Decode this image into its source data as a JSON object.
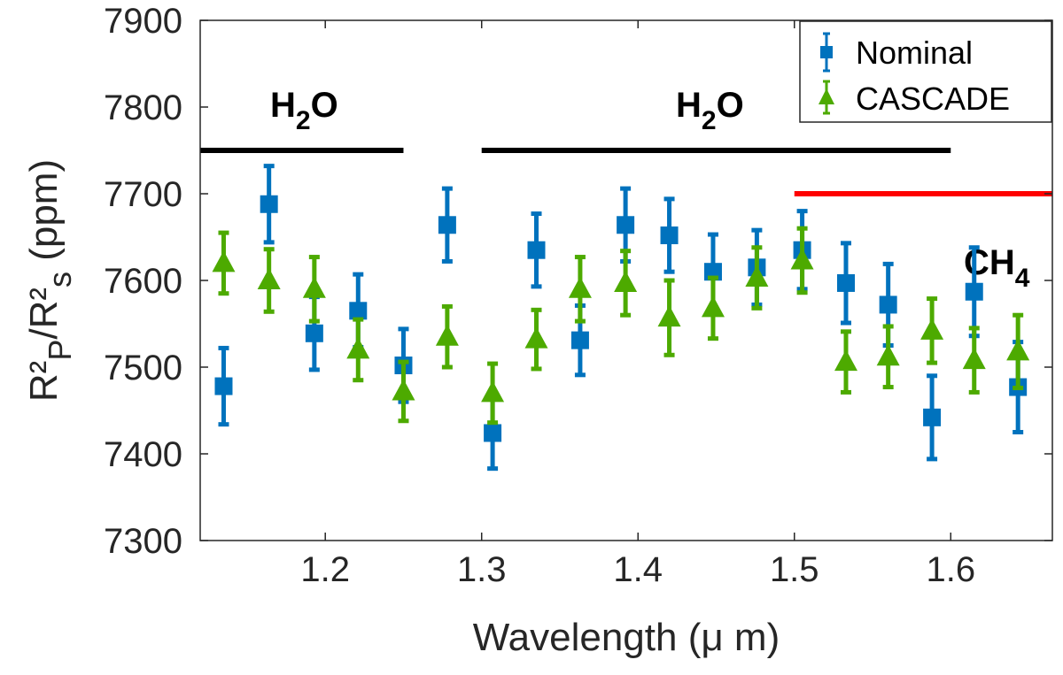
{
  "chart_data": {
    "type": "scatter",
    "title": "",
    "xlabel": "Wavelength (μ m)",
    "ylabel": "R²P/R²s (ppm)",
    "ylabel_parts": {
      "r1": "R²",
      "sub1": "P",
      "sep": "/R²",
      "sub2": "s",
      "unit": " (ppm)"
    },
    "xlim": [
      1.12,
      1.665
    ],
    "ylim": [
      7300,
      7900
    ],
    "xticks": [
      {
        "value": 1.2,
        "label": "1.2"
      },
      {
        "value": 1.3,
        "label": "1.3"
      },
      {
        "value": 1.4,
        "label": "1.4"
      },
      {
        "value": 1.5,
        "label": "1.5"
      },
      {
        "value": 1.6,
        "label": "1.6"
      }
    ],
    "yticks": [
      {
        "value": 7300,
        "label": "7300"
      },
      {
        "value": 7400,
        "label": "7400"
      },
      {
        "value": 7500,
        "label": "7500"
      },
      {
        "value": 7600,
        "label": "7600"
      },
      {
        "value": 7700,
        "label": "7700"
      },
      {
        "value": 7800,
        "label": "7800"
      },
      {
        "value": 7900,
        "label": "7900"
      }
    ],
    "grid": false,
    "legend_position": "top-right",
    "series": [
      {
        "name": "Nominal",
        "marker": "square",
        "color": "#0072BD",
        "x": [
          1.135,
          1.164,
          1.193,
          1.221,
          1.25,
          1.278,
          1.307,
          1.335,
          1.363,
          1.392,
          1.42,
          1.448,
          1.476,
          1.505,
          1.533,
          1.56,
          1.588,
          1.615,
          1.643
        ],
        "y": [
          7478,
          7688,
          7539,
          7565,
          7502,
          7664,
          7424,
          7635,
          7531,
          7664,
          7652,
          7610,
          7615,
          7635,
          7597,
          7572,
          7442,
          7587,
          7477
        ],
        "err": [
          44,
          44,
          42,
          42,
          42,
          42,
          41,
          42,
          40,
          42,
          42,
          43,
          43,
          45,
          46,
          47,
          48,
          51,
          52
        ]
      },
      {
        "name": "CASCADE",
        "marker": "triangle",
        "color": "#4DAA00",
        "x": [
          1.135,
          1.164,
          1.193,
          1.221,
          1.25,
          1.278,
          1.307,
          1.335,
          1.363,
          1.392,
          1.42,
          1.448,
          1.476,
          1.505,
          1.533,
          1.56,
          1.588,
          1.615,
          1.643
        ],
        "y": [
          7620,
          7600,
          7590,
          7520,
          7472,
          7535,
          7470,
          7532,
          7590,
          7597,
          7557,
          7568,
          7603,
          7623,
          7506,
          7512,
          7542,
          7508,
          7518
        ],
        "err": [
          35,
          36,
          37,
          35,
          34,
          35,
          34,
          34,
          37,
          37,
          43,
          35,
          35,
          37,
          35,
          35,
          37,
          37,
          42
        ]
      }
    ],
    "annotations": [
      {
        "id": "h2o-left",
        "label": "H",
        "sub": "2",
        "tail": "O",
        "x0": 1.12,
        "x1": 1.25,
        "y": 7750,
        "color": "#000000"
      },
      {
        "id": "h2o-right",
        "label": "H",
        "sub": "2",
        "tail": "O",
        "x0": 1.3,
        "x1": 1.6,
        "y": 7750,
        "color": "#000000"
      },
      {
        "id": "ch4",
        "label": "CH",
        "sub": "4",
        "tail": "",
        "x0": 1.5,
        "x1": 1.665,
        "y": 7700,
        "color": "#E8521E",
        "line_color": "#FF0000"
      }
    ]
  }
}
